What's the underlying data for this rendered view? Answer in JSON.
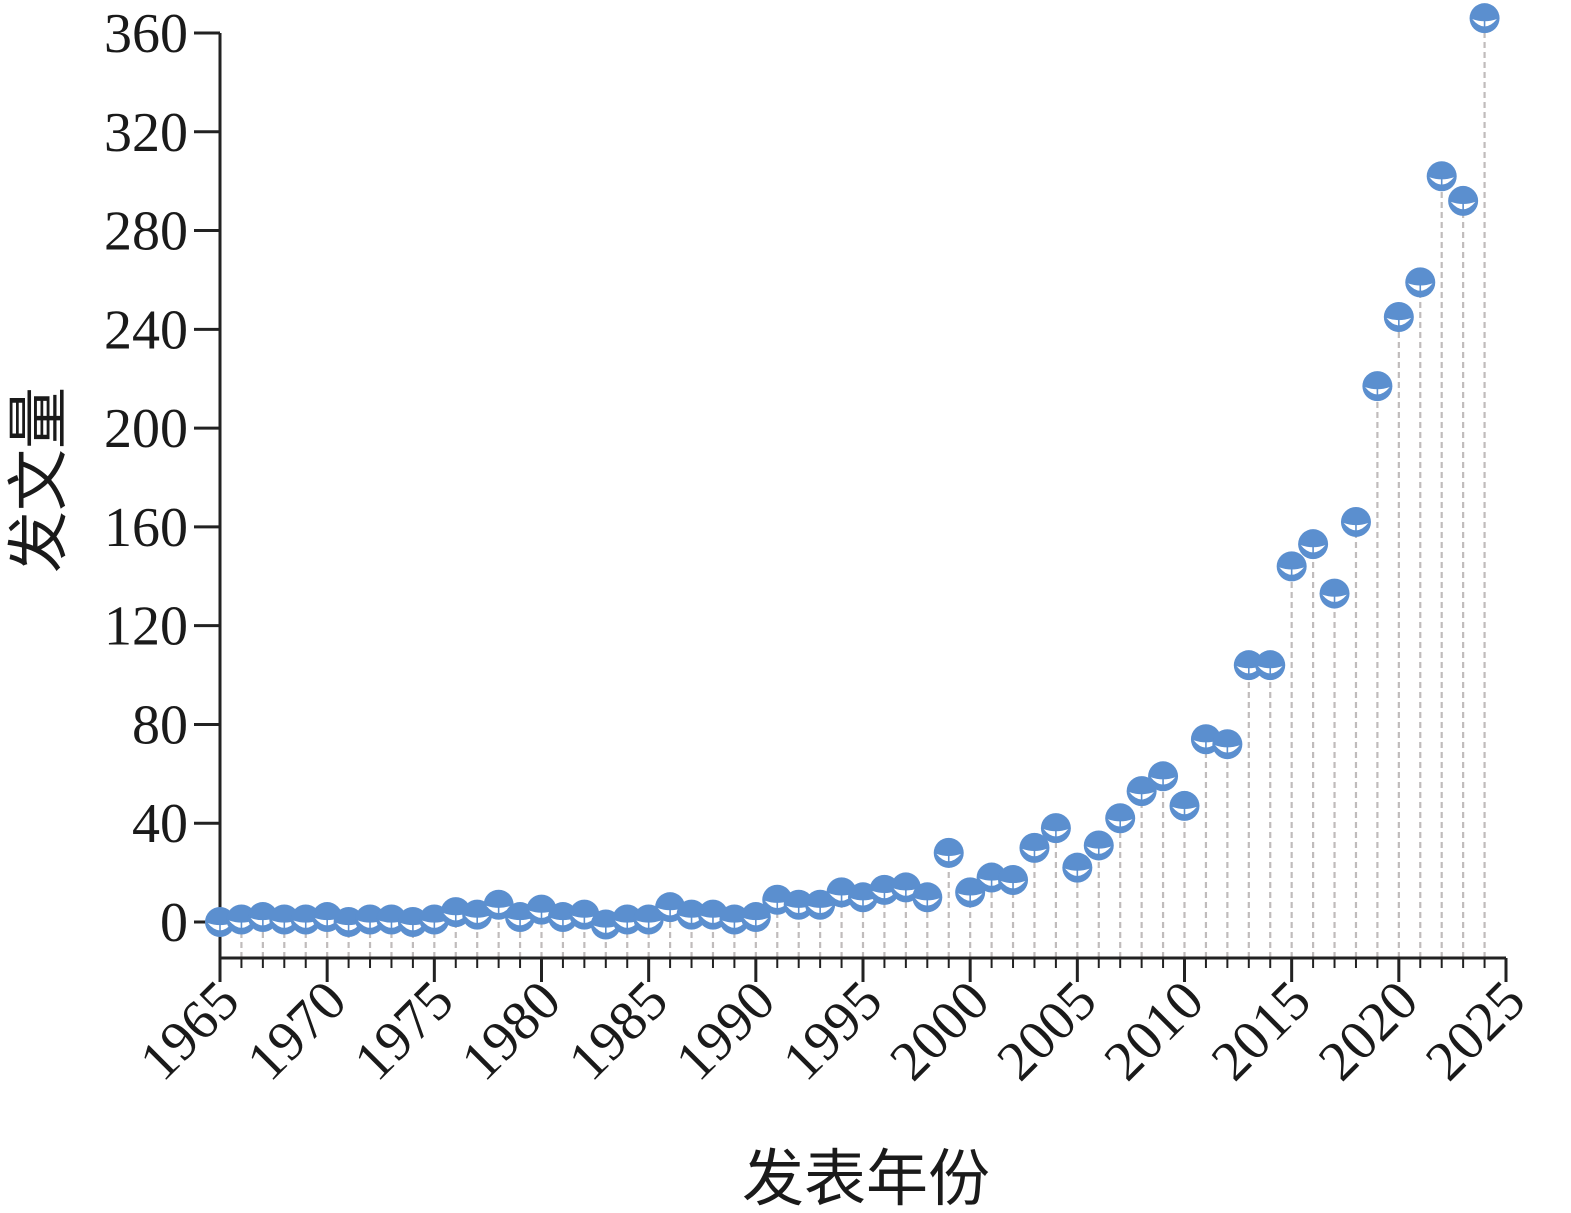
{
  "chart_data": {
    "type": "scatter",
    "style": "stem (lollipop) with dashed vertical drop lines",
    "xlabel": "发表年份",
    "ylabel": "发文量",
    "xlim": [
      1965,
      2025
    ],
    "ylim": [
      -15,
      360
    ],
    "x_ticks": [
      "1965",
      "1970",
      "1975",
      "1980",
      "1985",
      "1990",
      "1995",
      "2000",
      "2005",
      "2010",
      "2015",
      "2020",
      "2025"
    ],
    "y_ticks": [
      "0",
      "40",
      "80",
      "120",
      "160",
      "200",
      "240",
      "280",
      "320",
      "360"
    ],
    "marker_color": "#5b8fcf",
    "stem_color": "#c0bcbc",
    "series": [
      {
        "x": [
          1965,
          1966,
          1967,
          1968,
          1969,
          1970,
          1971,
          1972,
          1973,
          1974,
          1975,
          1976,
          1977,
          1978,
          1979,
          1980,
          1981,
          1982,
          1983,
          1984,
          1985,
          1986,
          1987,
          1988,
          1989,
          1990,
          1991,
          1992,
          1993,
          1994,
          1995,
          1996,
          1997,
          1998,
          1999,
          2000,
          2001,
          2002,
          2003,
          2004,
          2005,
          2006,
          2007,
          2008,
          2009,
          2010,
          2011,
          2012,
          2013,
          2014,
          2015,
          2016,
          2017,
          2018,
          2019,
          2020,
          2021,
          2022,
          2023,
          2024
        ],
        "values": [
          0,
          1,
          2,
          1,
          1,
          2,
          0,
          1,
          1,
          0,
          1,
          4,
          3,
          7,
          2,
          5,
          2,
          3,
          -1,
          1,
          1,
          6,
          3,
          3,
          1,
          2,
          9,
          7,
          7,
          12,
          10,
          13,
          14,
          10,
          28,
          12,
          18,
          17,
          30,
          38,
          22,
          31,
          42,
          53,
          59,
          47,
          74,
          72,
          104,
          104,
          144,
          153,
          133,
          162,
          217,
          245,
          259,
          302,
          292,
          366
        ]
      }
    ]
  }
}
